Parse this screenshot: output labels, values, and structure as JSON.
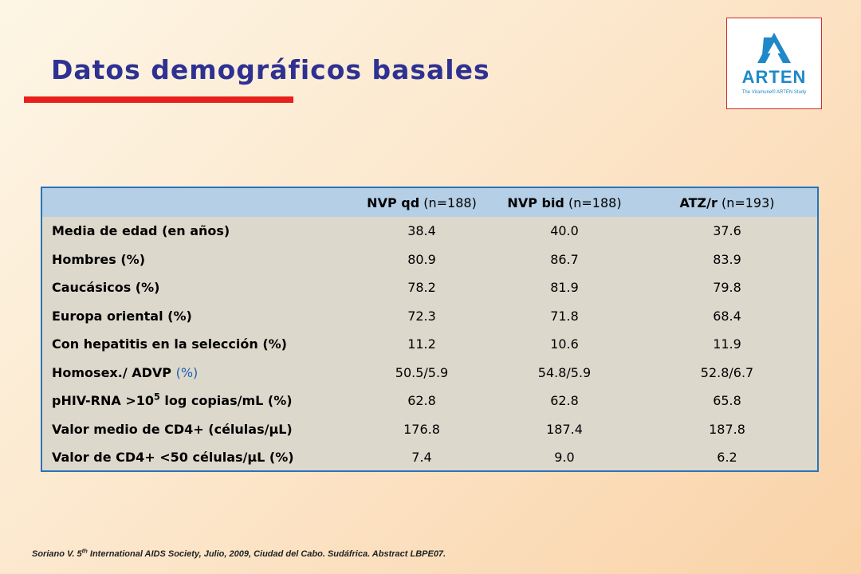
{
  "title": "Datos demográficos basales",
  "logo": {
    "name": "ARTEN",
    "tagline": "The Viramune® ARTEN Study"
  },
  "table": {
    "headers": [
      {
        "name": "",
        "n": ""
      },
      {
        "name": "NVP qd",
        "n": "(n=188)"
      },
      {
        "name": "NVP bid",
        "n": "(n=188)"
      },
      {
        "name": "ATZ/r",
        "n": "(n=193)"
      }
    ],
    "rows": [
      {
        "label": "Media de edad (en años)",
        "values": [
          "38.4",
          "40.0",
          "37.6"
        ]
      },
      {
        "label": "Hombres (%)",
        "values": [
          "80.9",
          "86.7",
          "83.9"
        ]
      },
      {
        "label": "Caucásicos (%)",
        "values": [
          "78.2",
          "81.9",
          "79.8"
        ]
      },
      {
        "label": "Europa oriental (%)",
        "values": [
          "72.3",
          "71.8",
          "68.4"
        ]
      },
      {
        "label": "Con hepatitis en la selección (%)",
        "values": [
          "11.2",
          "10.6",
          "11.9"
        ]
      },
      {
        "label": "Homosex./ ADVP",
        "label_suffix": "(%)",
        "values": [
          "50.5/5.9",
          "54.8/5.9",
          "52.8/6.7"
        ]
      },
      {
        "label": "pHIV-RNA >10",
        "label_sup": "5",
        "label_suffix": " log copias/mL (%)",
        "values": [
          "62.8",
          "62.8",
          "65.8"
        ]
      },
      {
        "label": "Valor medio de CD4+ (células/µL)",
        "values": [
          "176.8",
          "187.4",
          "187.8"
        ]
      },
      {
        "label": "Valor de CD4+ <50 células/µL (%)",
        "values": [
          "7.4",
          "9.0",
          "6.2"
        ]
      }
    ]
  },
  "citation": {
    "pre": "Soriano V. 5",
    "sup": "th",
    "post": " International AIDS Society, Julio, 2009, Ciudad del Cabo. Sudáfrica. Abstract LBPE07."
  }
}
